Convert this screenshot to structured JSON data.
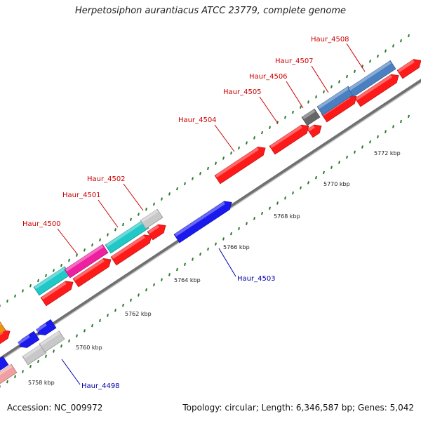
{
  "title": "Herpetosiphon aurantiacus ATCC 23779, complete genome",
  "footer": {
    "accession": "Accession: NC_009972",
    "summary": "Topology: circular; Length: 6,346,587 bp; Genes: 5,042"
  },
  "kbp_labels": [
    "5758 kbp",
    "5760 kbp",
    "5762 kbp",
    "5764 kbp",
    "5766 kbp",
    "5768 kbp",
    "5770 kbp",
    "5772 kbp"
  ],
  "gene_labels": [
    "Haur_4498",
    "Haur_4500",
    "Haur_4501",
    "Haur_4502",
    "Haur_4503",
    "Haur_4504",
    "Haur_4505",
    "Haur_4506",
    "Haur_4507",
    "Haur_4508"
  ],
  "colors": {
    "red": "#ff1a1a",
    "blue": "#1a1aee",
    "teal": "#20c8c8",
    "magenta": "#ee20a0",
    "steelblue": "#4a80c0",
    "gray": "#c8c8c8",
    "darkgray": "#666666",
    "pink": "#f0a0a0",
    "orange": "#f09010",
    "label_red": "#cc0000",
    "label_blue": "#0000aa",
    "tick_green": "#2a7a2a"
  }
}
